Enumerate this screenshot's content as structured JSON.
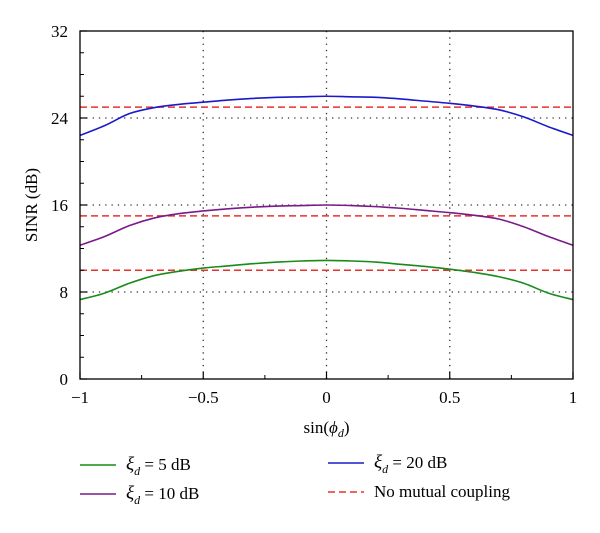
{
  "chart_data": {
    "type": "line",
    "xlabel": "sin(ϕ_d)",
    "ylabel": "SINR (dB)",
    "xlim": [
      -1,
      1
    ],
    "ylim": [
      0,
      32
    ],
    "x_ticks": [
      -1,
      -0.5,
      0,
      0.5,
      1
    ],
    "x_tick_labels": [
      "−1",
      "−0.5",
      "0",
      "0.5",
      "1"
    ],
    "y_ticks": [
      0,
      8,
      16,
      24,
      32
    ],
    "y_tick_labels": [
      "0",
      "8",
      "16",
      "24",
      "32"
    ],
    "grid": "dotted",
    "legend_position": "bottom",
    "x": [
      -1,
      -0.9,
      -0.8,
      -0.7,
      -0.6,
      -0.5,
      -0.4,
      -0.3,
      -0.2,
      -0.1,
      0,
      0.1,
      0.2,
      0.3,
      0.4,
      0.5,
      0.6,
      0.7,
      0.8,
      0.9,
      1
    ],
    "series": [
      {
        "name": "ξ_d = 5 dB",
        "legend_symbol": "ξ",
        "legend_sub": "d",
        "legend_text": " = 5 dB",
        "style": "solid",
        "color": "#1a8a1a",
        "values": [
          7.3,
          7.9,
          8.8,
          9.5,
          9.9,
          10.2,
          10.4,
          10.6,
          10.75,
          10.85,
          10.9,
          10.85,
          10.75,
          10.55,
          10.35,
          10.1,
          9.8,
          9.4,
          8.8,
          7.9,
          7.3
        ]
      },
      {
        "name": "ξ_d = 10 dB",
        "legend_symbol": "ξ",
        "legend_sub": "d",
        "legend_text": " = 10 dB",
        "style": "solid",
        "color": "#7a1a8a",
        "values": [
          12.3,
          13.1,
          14.1,
          14.8,
          15.2,
          15.45,
          15.65,
          15.8,
          15.9,
          15.95,
          16.0,
          15.95,
          15.85,
          15.7,
          15.5,
          15.3,
          15.05,
          14.7,
          14.0,
          13.1,
          12.3
        ]
      },
      {
        "name": "ξ_d = 20 dB",
        "legend_symbol": "ξ",
        "legend_sub": "d",
        "legend_text": " = 20 dB",
        "style": "solid",
        "color": "#1a1acc",
        "values": [
          22.4,
          23.3,
          24.4,
          24.95,
          25.25,
          25.45,
          25.65,
          25.8,
          25.9,
          25.95,
          26.0,
          25.95,
          25.9,
          25.75,
          25.55,
          25.35,
          25.1,
          24.75,
          24.1,
          23.2,
          22.4
        ]
      },
      {
        "name": "No mutual coupling",
        "legend_text": "No mutual coupling",
        "style": "dashed",
        "color": "#e8322c",
        "values_const": [
          10,
          15,
          25
        ]
      }
    ]
  }
}
